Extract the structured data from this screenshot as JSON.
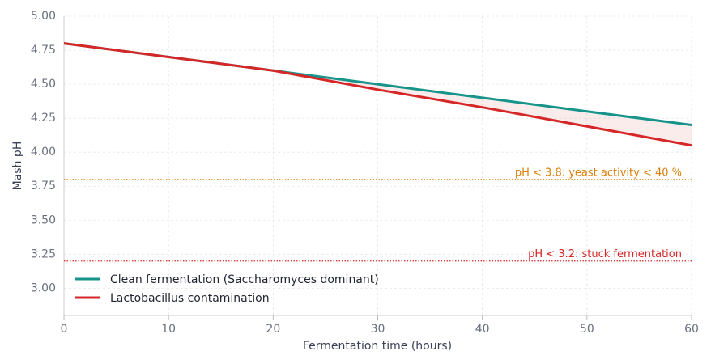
{
  "chart_data": {
    "type": "line",
    "x": [
      0,
      10,
      20,
      30,
      40,
      50,
      60
    ],
    "series": [
      {
        "name": "Clean fermentation (Saccharomyces dominant)",
        "color": "#17948a",
        "values": [
          4.8,
          4.7,
          4.6,
          4.5,
          4.4,
          4.3,
          4.2
        ]
      },
      {
        "name": "Lactobacillus contamination",
        "color": "#d62728",
        "values": [
          4.8,
          4.7,
          4.6,
          4.46,
          4.33,
          4.19,
          4.05
        ]
      }
    ],
    "fill_between_color": "#d62728",
    "x_label": "Fermentation time (hours)",
    "y_label": "Mash pH",
    "xlim": [
      0,
      60
    ],
    "xticks": [
      0,
      10,
      20,
      30,
      40,
      50,
      60
    ],
    "ylim": [
      2.8,
      5.0
    ],
    "yticks": [
      {
        "value": 3,
        "label": "3.00"
      },
      {
        "value": 3.25,
        "label": "3.25"
      },
      {
        "value": 3.5,
        "label": "3.50"
      },
      {
        "value": 3.75,
        "label": "3.75"
      },
      {
        "value": 4,
        "label": "4.00"
      },
      {
        "value": 4.25,
        "label": "4.25"
      },
      {
        "value": 4.5,
        "label": "4.50"
      },
      {
        "value": 4.75,
        "label": "4.75"
      },
      {
        "value": 5,
        "label": "5.00"
      }
    ],
    "grid": true,
    "legend": "lower left",
    "thresholds": [
      {
        "y": 3.8,
        "label": "pH < 3.8: yeast activity < 40 %",
        "color": "#d97f0a"
      },
      {
        "y": 3.2,
        "label": "pH < 3.2: stuck fermentation",
        "color": "#d62728"
      }
    ]
  }
}
